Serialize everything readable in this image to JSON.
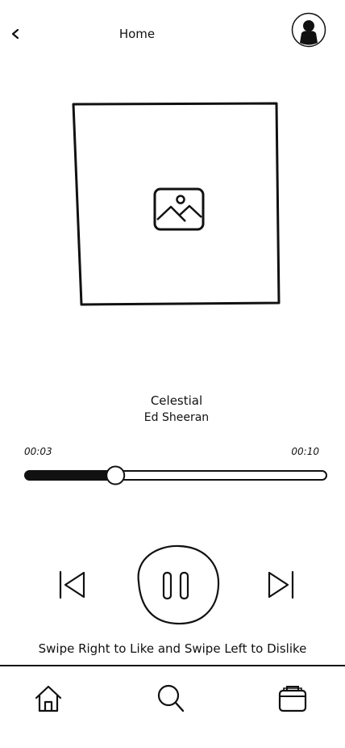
{
  "header": {
    "title": "Home"
  },
  "track": {
    "title": "Celestial",
    "artist": "Ed Sheeran"
  },
  "playback": {
    "current_time": "00:03",
    "total_time": "00:10",
    "progress": 0.3
  },
  "swipe_hint": "Swipe Right to Like and Swipe Left to Dislike",
  "icons": {
    "back": "chevron-left-icon",
    "avatar": "user-avatar-icon",
    "artwork": "image-placeholder-icon",
    "previous": "skip-previous-icon",
    "play_pause": "pause-icon",
    "next": "skip-next-icon",
    "home": "home-icon",
    "search": "search-icon",
    "library": "library-icon"
  }
}
